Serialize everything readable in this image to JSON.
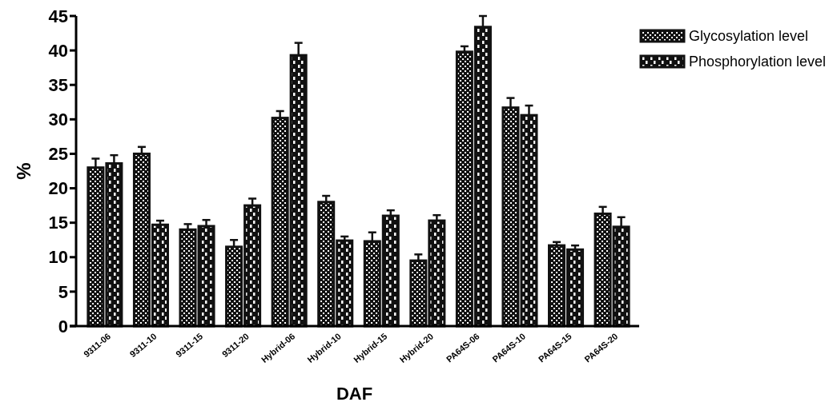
{
  "chart_data": {
    "type": "bar",
    "xlabel": "DAF",
    "ylabel": "%",
    "categories": [
      "9311-06",
      "9311-10",
      "9311-15",
      "9311-20",
      "Hybrid-06",
      "Hybrid-10",
      "Hybrid-15",
      "Hybrid-20",
      "PA64S-06",
      "PA64S-10",
      "PA64S-15",
      "PA64S-20"
    ],
    "series": [
      {
        "name": "Glycosylation level",
        "color": "#111111",
        "values": [
          23,
          25,
          14,
          11.5,
          30.2,
          18,
          12.3,
          9.5,
          39.8,
          31.7,
          11.7,
          16.3
        ],
        "errors": [
          1.3,
          1,
          0.8,
          1,
          1,
          0.9,
          1.3,
          0.9,
          0.8,
          1.4,
          0.5,
          1
        ]
      },
      {
        "name": "Phosphorylation level",
        "color": "#111111",
        "values": [
          23.6,
          14.7,
          14.5,
          17.5,
          39.3,
          12.4,
          16,
          15.3,
          43.4,
          30.6,
          11.1,
          14.4
        ],
        "errors": [
          1.2,
          0.6,
          0.9,
          1,
          1.8,
          0.6,
          0.8,
          0.8,
          1.6,
          1.4,
          0.6,
          1.4
        ]
      }
    ],
    "ylim": [
      0,
      45
    ],
    "yticks": [
      0,
      5,
      10,
      15,
      20,
      25,
      30,
      35,
      40,
      45
    ],
    "grid": false,
    "legend": "top right"
  }
}
